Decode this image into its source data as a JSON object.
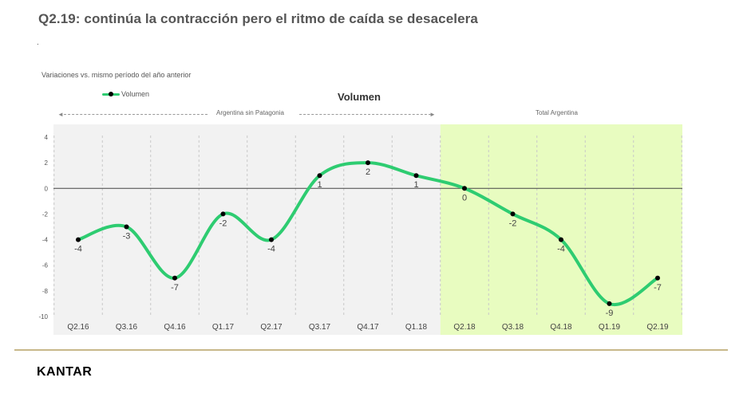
{
  "slide": {
    "title": "Q2.19: continúa la contracción pero el ritmo de caída se desacelera",
    "mark": ".",
    "subtitle": "Variaciones vs. mismo período del año anterior",
    "logo": "KANTAR"
  },
  "colors": {
    "series": "#2ecc71",
    "highlight_bg": "#e8fcc0",
    "plot_bg": "#f2f2f2",
    "point": "#000000"
  },
  "chart_data": {
    "type": "line",
    "title": "Volumen",
    "categories": [
      "Q2.16",
      "Q3.16",
      "Q4.16",
      "Q1.17",
      "Q2.17",
      "Q3.17",
      "Q4.17",
      "Q1.18",
      "Q2.18",
      "Q3.18",
      "Q4.18",
      "Q1.19",
      "Q2.19"
    ],
    "series": [
      {
        "name": "Volumen",
        "values": [
          -4,
          -3,
          -7,
          -2,
          -4,
          1,
          2,
          1,
          0,
          -2,
          -4,
          -9,
          -7
        ]
      }
    ],
    "ylim": [
      -10,
      4
    ],
    "yticks": [
      4,
      2,
      0,
      -2,
      -4,
      -6,
      -8,
      -10
    ],
    "legend": "top-left",
    "grid": "vertical dashed",
    "regions": [
      {
        "label": "Argentina sin Patagonia",
        "from": "Q2.16",
        "to": "Q1.18"
      },
      {
        "label": "Total Argentina",
        "from": "Q2.18",
        "to": "Q2.19",
        "highlighted": true
      }
    ]
  }
}
